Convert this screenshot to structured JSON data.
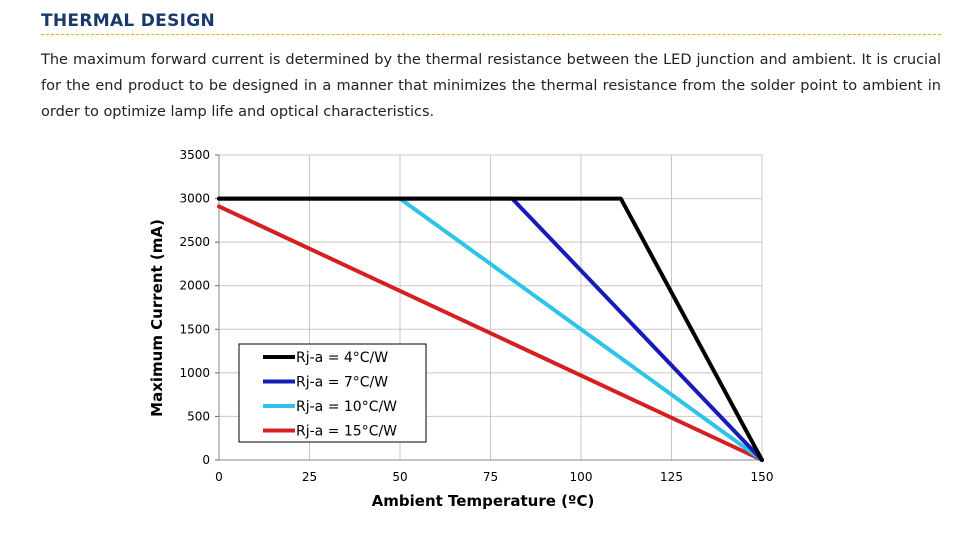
{
  "section": {
    "title": "THERMAL DESIGN",
    "intro": "The maximum forward current is determined by the thermal resistance between the LED junction and ambient. It is crucial for the end product to be designed in a manner that minimizes the thermal resistance from the solder point to ambient in order to optimize lamp life and optical characteristics."
  },
  "chart_data": {
    "type": "line",
    "xlabel": "Ambient Temperature (ºC)",
    "ylabel": "Maximum Current (mA)",
    "xlim": [
      0,
      150
    ],
    "ylim": [
      0,
      3500
    ],
    "xticks": [
      0,
      25,
      50,
      75,
      100,
      125,
      150
    ],
    "yticks": [
      0,
      500,
      1000,
      1500,
      2000,
      2500,
      3000,
      3500
    ],
    "grid": true,
    "legend_position": "bottom-left",
    "series": [
      {
        "name": "Rj-a = 4°C/W",
        "color": "#000000",
        "points": [
          [
            0,
            3000
          ],
          [
            111,
            3000
          ],
          [
            150,
            0
          ]
        ]
      },
      {
        "name": "Rj-a = 7°C/W",
        "color": "#1a1ab8",
        "points": [
          [
            0,
            3000
          ],
          [
            81,
            3000
          ],
          [
            150,
            0
          ]
        ]
      },
      {
        "name": "Rj-a = 10°C/W",
        "color": "#2ec4e8",
        "points": [
          [
            0,
            3000
          ],
          [
            50,
            3000
          ],
          [
            150,
            0
          ]
        ]
      },
      {
        "name": "Rj-a = 15°C/W",
        "color": "#d42020",
        "points": [
          [
            0,
            2910
          ],
          [
            150,
            0
          ]
        ]
      }
    ]
  }
}
